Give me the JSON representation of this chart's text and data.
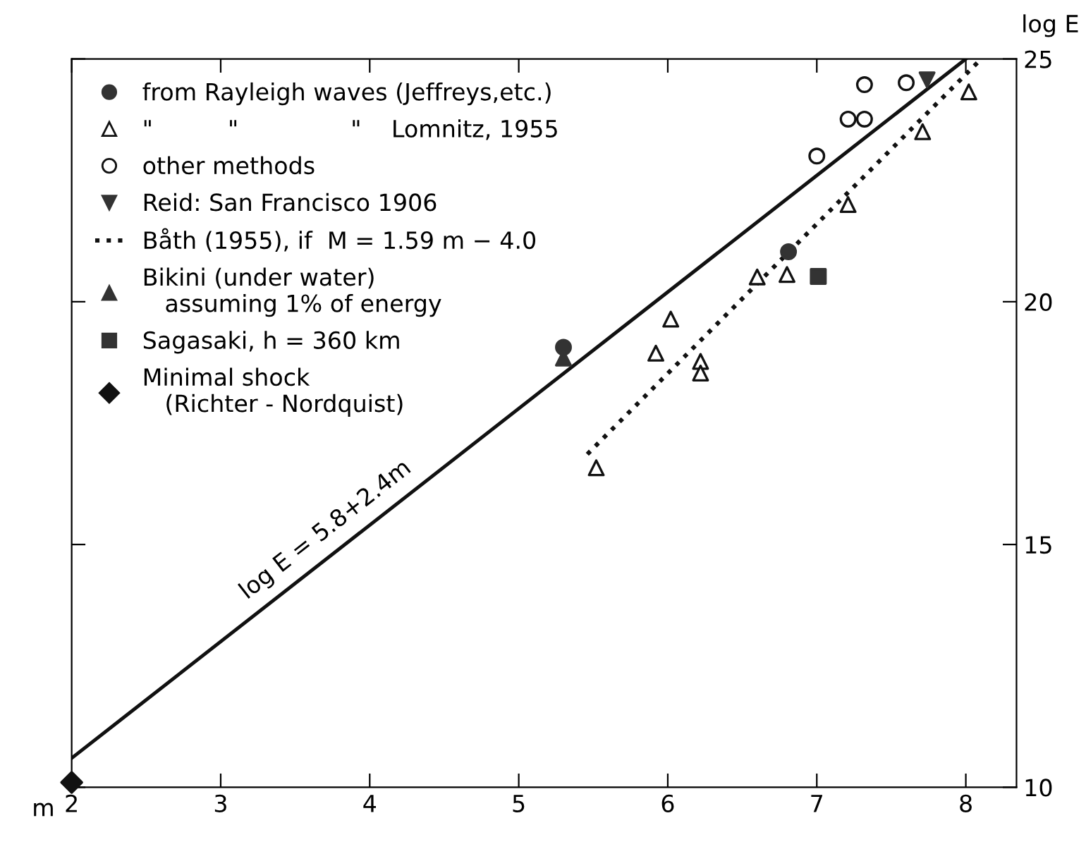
{
  "chart_data": {
    "type": "scatter",
    "xlabel": "m",
    "ylabel": "log E",
    "xlim": [
      2,
      8.34
    ],
    "ylim": [
      10,
      25
    ],
    "xticks": [
      2,
      3,
      4,
      5,
      6,
      7,
      8
    ],
    "yticks": [
      10,
      15,
      20,
      25
    ],
    "grid": false,
    "legend": "top left",
    "annotations": [
      "log E = 5.8+2.4m"
    ],
    "series": [
      {
        "name": "from Rayleigh waves (Jeffreys,etc.)",
        "marker": "circle",
        "color": "#333333",
        "x": [
          5.3,
          6.81
        ],
        "values": [
          19.06,
          21.03
        ]
      },
      {
        "name": "\"          \"               \"    Lomnitz, 1955",
        "marker": "triangle-open",
        "color": "#111111",
        "x": [
          5.52,
          5.92,
          6.02,
          6.22,
          6.22,
          6.6,
          6.8,
          7.21,
          7.71,
          8.02
        ],
        "values": [
          16.58,
          18.94,
          19.64,
          18.77,
          18.53,
          20.51,
          20.56,
          22.0,
          23.5,
          24.32
        ]
      },
      {
        "name": "other methods",
        "marker": "circle-open",
        "color": "#111111",
        "x": [
          7.0,
          7.21,
          7.32,
          7.32,
          7.6
        ],
        "values": [
          23.0,
          23.76,
          23.76,
          24.47,
          24.51
        ]
      },
      {
        "name": "Reid: San Francisco 1906",
        "marker": "triangle-down",
        "color": "#333333",
        "x": [
          7.74
        ],
        "values": [
          24.57
        ]
      },
      {
        "name": "Båth (1955), if  M = 1.59 m − 4.0",
        "type": "line",
        "line_style": "dotted",
        "color": "#111111",
        "x": [
          5.46,
          8.09
        ],
        "values": [
          16.86,
          24.96
        ]
      },
      {
        "name": "Bikini (under water)\n   assuming 1% of energy",
        "marker": "triangle",
        "color": "#333333",
        "x": [
          5.3
        ],
        "values": [
          18.84
        ]
      },
      {
        "name": "Sagasaki, h = 360 km",
        "marker": "square",
        "color": "#333333",
        "x": [
          7.01
        ],
        "values": [
          20.52
        ]
      },
      {
        "name": "Minimal shock\n   (Richter - Nordquist)",
        "marker": "diamond",
        "color": "#111111",
        "x": [
          2.0
        ],
        "values": [
          10.1
        ]
      },
      {
        "type": "line",
        "line_style": "solid",
        "color": "#111111",
        "x": [
          2,
          8
        ],
        "values": [
          10.6,
          25.0
        ]
      }
    ]
  }
}
